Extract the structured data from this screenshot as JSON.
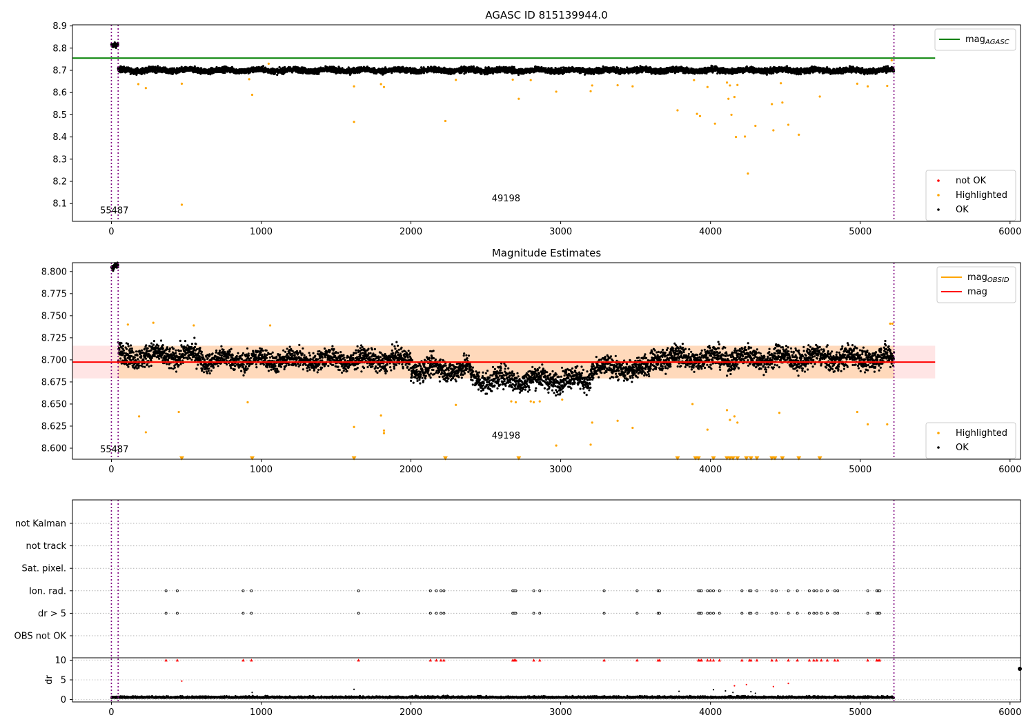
{
  "chart_data": [
    {
      "type": "scatter",
      "title": "AGASC ID 815139944.0",
      "xlim": [
        -260,
        6070
      ],
      "ylim": [
        8.02,
        8.905
      ],
      "xticks": [
        0,
        1000,
        2000,
        3000,
        4000,
        5000,
        6000
      ],
      "xtick_labels": [
        "0",
        "1000",
        "2000",
        "3000",
        "4000",
        "5000",
        "6000"
      ],
      "yticks": [
        8.1,
        8.2,
        8.3,
        8.4,
        8.5,
        8.6,
        8.7,
        8.8,
        8.9
      ],
      "ytick_labels": [
        "8.1",
        "8.2",
        "8.3",
        "8.4",
        "8.5",
        "8.6",
        "8.7",
        "8.8",
        "8.9"
      ],
      "vlines": [
        0,
        45,
        5225
      ],
      "hlines": [
        {
          "name": "mag_AGASC",
          "y": 8.755,
          "color": "#008000",
          "xrange": [
            -260,
            5500
          ]
        }
      ],
      "annotations": [
        {
          "text": "55487",
          "x": 20,
          "y": 8.055
        },
        {
          "text": "49198",
          "x": 2635,
          "y": 8.11
        }
      ],
      "series": [
        {
          "name": "not OK",
          "color": "#ff0000",
          "points": []
        },
        {
          "name": "Highlighted",
          "color": "#ffa500",
          "points": [
            [
              180,
              8.638
            ],
            [
              230,
              8.62
            ],
            [
              470,
              8.64
            ],
            [
              470,
              8.095
            ],
            [
              920,
              8.66
            ],
            [
              940,
              8.59
            ],
            [
              1050,
              8.73
            ],
            [
              1620,
              8.628
            ],
            [
              1620,
              8.468
            ],
            [
              1800,
              8.638
            ],
            [
              1820,
              8.625
            ],
            [
              2230,
              8.472
            ],
            [
              2300,
              8.657
            ],
            [
              2680,
              8.658
            ],
            [
              2720,
              8.572
            ],
            [
              2800,
              8.656
            ],
            [
              2970,
              8.604
            ],
            [
              3200,
              8.606
            ],
            [
              3210,
              8.632
            ],
            [
              3380,
              8.633
            ],
            [
              3480,
              8.628
            ],
            [
              3780,
              8.52
            ],
            [
              3890,
              8.656
            ],
            [
              3910,
              8.504
            ],
            [
              3930,
              8.494
            ],
            [
              3980,
              8.625
            ],
            [
              4030,
              8.46
            ],
            [
              4110,
              8.645
            ],
            [
              4120,
              8.572
            ],
            [
              4130,
              8.632
            ],
            [
              4140,
              8.5
            ],
            [
              4160,
              8.58
            ],
            [
              4170,
              8.4
            ],
            [
              4180,
              8.634
            ],
            [
              4230,
              8.402
            ],
            [
              4250,
              8.235
            ],
            [
              4300,
              8.45
            ],
            [
              4410,
              8.548
            ],
            [
              4420,
              8.43
            ],
            [
              4470,
              8.642
            ],
            [
              4480,
              8.555
            ],
            [
              4520,
              8.455
            ],
            [
              4590,
              8.41
            ],
            [
              4730,
              8.582
            ],
            [
              4980,
              8.64
            ],
            [
              5050,
              8.628
            ],
            [
              5180,
              8.63
            ],
            [
              5210,
              8.745
            ]
          ]
        },
        {
          "name": "OK",
          "color": "#000000",
          "segments": [
            {
              "x0": 0,
              "x1": 45,
              "y": 8.812,
              "amp": 0.01
            },
            {
              "x0": 45,
              "x1": 5225,
              "y": 8.7,
              "amp": 0.012
            }
          ]
        }
      ],
      "legend_upper": [
        {
          "name": "mag",
          "sub": "AGASC",
          "color": "#008000"
        }
      ],
      "legend_lower": [
        {
          "name": "not OK",
          "color": "#ff0000"
        },
        {
          "name": "Highlighted",
          "color": "#ffa500"
        },
        {
          "name": "OK",
          "color": "#000000"
        }
      ]
    },
    {
      "type": "scatter",
      "title": "Magnitude Estimates",
      "xlim": [
        -260,
        6070
      ],
      "ylim": [
        8.5875,
        8.81
      ],
      "xticks": [
        0,
        1000,
        2000,
        3000,
        4000,
        5000,
        6000
      ],
      "xtick_labels": [
        "0",
        "1000",
        "2000",
        "3000",
        "4000",
        "5000",
        "6000"
      ],
      "yticks": [
        8.6,
        8.625,
        8.65,
        8.675,
        8.7,
        8.725,
        8.75,
        8.775,
        8.8
      ],
      "ytick_labels": [
        "8.600",
        "8.625",
        "8.650",
        "8.675",
        "8.700",
        "8.725",
        "8.750",
        "8.775",
        "8.800"
      ],
      "vlines": [
        0,
        45,
        5225
      ],
      "hlines": [
        {
          "name": "mag_OBSID",
          "y": 8.6975,
          "color": "#ffa500",
          "xrange": [
            45,
            5225
          ]
        },
        {
          "name": "mag",
          "y": 8.6975,
          "color": "#ff0000",
          "xrange": [
            -260,
            5500
          ]
        }
      ],
      "bands": [
        {
          "y0": 8.679,
          "y1": 8.716,
          "color": "#ff0000",
          "alpha": 0.1,
          "xrange": [
            -260,
            5500
          ]
        },
        {
          "y0": 8.679,
          "y1": 8.716,
          "color": "#ffa500",
          "alpha": 0.18,
          "xrange": [
            45,
            5225
          ]
        }
      ],
      "annotations": [
        {
          "text": "55487",
          "x": 20,
          "y": 8.5955
        },
        {
          "text": "49198",
          "x": 2635,
          "y": 8.611
        }
      ],
      "series": [
        {
          "name": "Highlighted",
          "color": "#ffa500",
          "points": [
            [
              110,
              8.74
            ],
            [
              280,
              8.742
            ],
            [
              550,
              8.739
            ],
            [
              1060,
              8.739
            ],
            [
              185,
              8.636
            ],
            [
              230,
              8.618
            ],
            [
              450,
              8.641
            ],
            [
              910,
              8.652
            ],
            [
              1620,
              8.624
            ],
            [
              1800,
              8.637
            ],
            [
              1820,
              8.62
            ],
            [
              1820,
              8.617
            ],
            [
              2300,
              8.649
            ],
            [
              2670,
              8.653
            ],
            [
              2700,
              8.652
            ],
            [
              2800,
              8.653
            ],
            [
              2820,
              8.652
            ],
            [
              2860,
              8.653
            ],
            [
              2970,
              8.603
            ],
            [
              3010,
              8.655
            ],
            [
              3200,
              8.604
            ],
            [
              3210,
              8.629
            ],
            [
              3380,
              8.631
            ],
            [
              3480,
              8.623
            ],
            [
              3880,
              8.65
            ],
            [
              3980,
              8.621
            ],
            [
              4110,
              8.643
            ],
            [
              4130,
              8.632
            ],
            [
              4160,
              8.636
            ],
            [
              4180,
              8.629
            ],
            [
              4460,
              8.64
            ],
            [
              4980,
              8.641
            ],
            [
              5050,
              8.627
            ],
            [
              5180,
              8.627
            ],
            [
              5200,
              8.741
            ],
            [
              5215,
              8.741
            ]
          ]
        },
        {
          "name": "Highlighted (below axis)",
          "color": "#ffa500",
          "marker": "triangle-down",
          "y": 8.5885,
          "x": [
            470,
            940,
            1620,
            2230,
            2720,
            3780,
            3900,
            3920,
            4020,
            4110,
            4130,
            4150,
            4180,
            4240,
            4270,
            4310,
            4410,
            4430,
            4480,
            4590,
            4730
          ]
        },
        {
          "name": "OK",
          "color": "#000000",
          "segments": [
            {
              "x0": 0,
              "x1": 45,
              "y": 8.805,
              "amp": 0.004
            },
            {
              "x0": 45,
              "x1": 600,
              "y": 8.705,
              "amp": 0.012
            },
            {
              "x0": 600,
              "x1": 2000,
              "y": 8.7,
              "amp": 0.011
            },
            {
              "x0": 2000,
              "x1": 2400,
              "y": 8.69,
              "amp": 0.012
            },
            {
              "x0": 2400,
              "x1": 3200,
              "y": 8.678,
              "amp": 0.012
            },
            {
              "x0": 3200,
              "x1": 3600,
              "y": 8.69,
              "amp": 0.011
            },
            {
              "x0": 3600,
              "x1": 5225,
              "y": 8.702,
              "amp": 0.012
            }
          ]
        }
      ],
      "legend_upper": [
        {
          "name": "mag",
          "sub": "OBSID",
          "color": "#ffa500"
        },
        {
          "name": "mag",
          "sub": "",
          "color": "#ff0000"
        }
      ],
      "legend_lower": [
        {
          "name": "Highlighted",
          "color": "#ffa500"
        },
        {
          "name": "OK",
          "color": "#000000"
        }
      ]
    },
    {
      "type": "scatter",
      "title": "",
      "xlim": [
        -260,
        6070
      ],
      "categories": [
        "not Kalman",
        "not track",
        "Sat. pixel.",
        "Ion. rad.",
        "dr > 5",
        "OBS not OK"
      ],
      "vlines": [
        0,
        45,
        5225
      ],
      "flag_x": [
        365,
        440,
        880,
        935,
        1650,
        2130,
        2170,
        2200,
        2220,
        2680,
        2690,
        2700,
        2820,
        2860,
        3290,
        3510,
        3650,
        3660,
        3920,
        3930,
        3940,
        3980,
        4000,
        4020,
        4060,
        4210,
        4260,
        4270,
        4310,
        4410,
        4440,
        4520,
        4580,
        4660,
        4690,
        4710,
        4740,
        4780,
        4830,
        4850,
        5050,
        5110,
        5120,
        5130
      ],
      "flag_rows": [
        "Ion. rad.",
        "dr > 5"
      ],
      "dr": {
        "ylabel": "dr",
        "ylim": [
          -0.6,
          10.6
        ],
        "yticks": [
          0,
          5,
          10
        ],
        "ytick_labels": [
          "0",
          "5",
          "10"
        ],
        "clipped_red_y": 10,
        "extra_red": [
          [
            470,
            4.7
          ],
          [
            4240,
            3.8
          ],
          [
            4160,
            3.5
          ],
          [
            4420,
            3.3
          ],
          [
            4520,
            4.1
          ]
        ],
        "extra_black": [
          [
            1620,
            2.6
          ],
          [
            940,
            1.8
          ],
          [
            3790,
            2.1
          ],
          [
            4020,
            2.5
          ],
          [
            4100,
            2.2
          ],
          [
            4150,
            1.8
          ],
          [
            4270,
            2.0
          ],
          [
            4300,
            1.6
          ]
        ],
        "baseline": {
          "x0": 0,
          "x1": 5225,
          "y": 0.6,
          "amp": 0.45
        }
      }
    }
  ]
}
